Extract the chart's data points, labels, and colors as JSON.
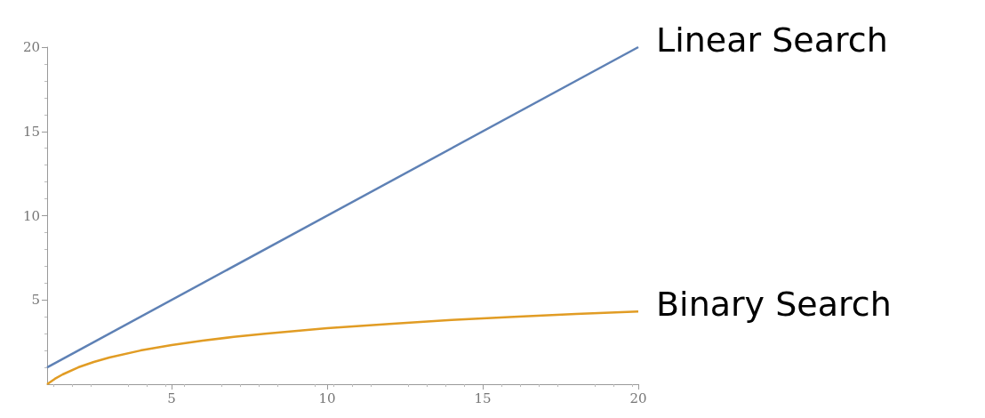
{
  "chart_data": {
    "type": "line",
    "xlim": [
      1,
      20
    ],
    "ylim": [
      0,
      20
    ],
    "xticks": [
      5,
      10,
      15,
      20
    ],
    "yticks": [
      5,
      10,
      15,
      20
    ],
    "grid": false,
    "legend": false,
    "marker": "none",
    "line_style": "solid",
    "series": [
      {
        "name": "Linear Search",
        "color": "#5e81b5",
        "x": [
          1,
          20
        ],
        "values": [
          1,
          20
        ]
      },
      {
        "name": "Binary Search",
        "color": "#e19c24",
        "x": [
          1,
          1.25,
          1.5,
          2,
          2.5,
          3,
          4,
          5,
          6,
          7,
          8,
          10,
          12,
          14,
          16,
          18,
          20
        ],
        "values": [
          0,
          0.32,
          0.58,
          1,
          1.32,
          1.58,
          2,
          2.32,
          2.58,
          2.81,
          3,
          3.32,
          3.58,
          3.81,
          4,
          4.17,
          4.32
        ]
      }
    ]
  }
}
